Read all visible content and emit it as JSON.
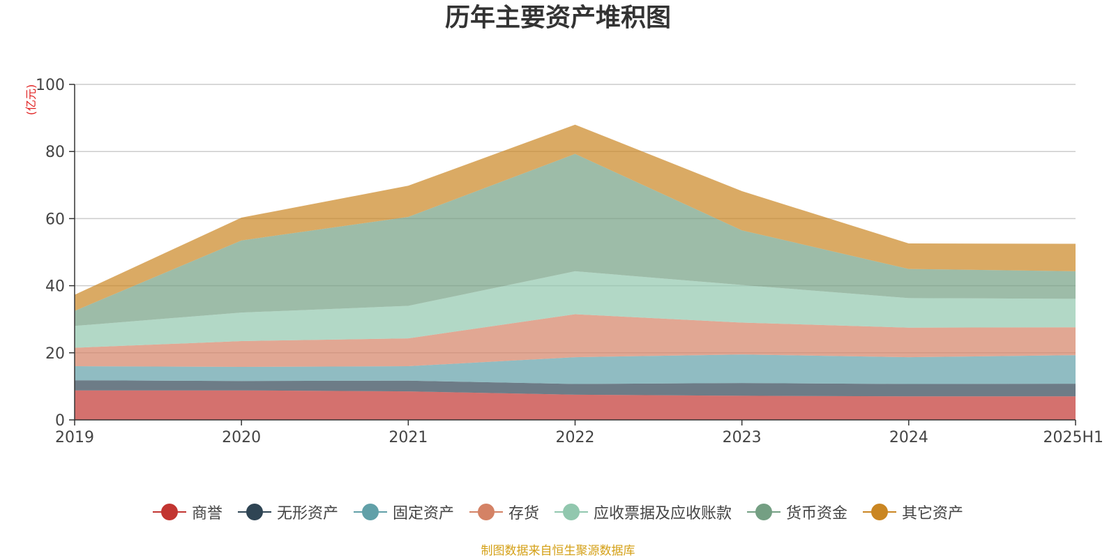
{
  "chart_data": {
    "type": "area",
    "stacked": true,
    "title": "历年主要资产堆积图",
    "unit_label": "(亿元)",
    "categories": [
      "2019",
      "2020",
      "2021",
      "2022",
      "2023",
      "2024",
      "2025H1"
    ],
    "ylim": [
      0,
      100
    ],
    "yticks": [
      0,
      20,
      40,
      60,
      80,
      100
    ],
    "grid": true,
    "legend_position": "bottom",
    "series": [
      {
        "name": "商誉",
        "color": "#c23531",
        "values": [
          8.8,
          8.8,
          8.5,
          7.5,
          7.2,
          7.0,
          7.0
        ]
      },
      {
        "name": "无形资产",
        "color": "#2f4554",
        "values": [
          3.0,
          2.8,
          3.2,
          3.2,
          3.8,
          3.7,
          3.8
        ]
      },
      {
        "name": "固定资产",
        "color": "#61a0a8",
        "values": [
          4.2,
          4.2,
          4.3,
          8.0,
          8.5,
          8.0,
          8.5
        ]
      },
      {
        "name": "存货",
        "color": "#d48265",
        "values": [
          5.5,
          7.7,
          8.3,
          12.8,
          9.5,
          8.8,
          8.3
        ]
      },
      {
        "name": "应收票据及应收账款",
        "color": "#91c7ae",
        "values": [
          6.5,
          8.5,
          9.7,
          12.8,
          11.2,
          8.8,
          8.5
        ]
      },
      {
        "name": "货币资金",
        "color": "#749f83",
        "values": [
          4.5,
          21.5,
          26.5,
          35.0,
          16.3,
          8.7,
          8.2
        ]
      },
      {
        "name": "其它资产",
        "color": "#ca8622",
        "values": [
          4.8,
          6.8,
          9.3,
          8.7,
          11.7,
          7.6,
          8.2
        ]
      }
    ]
  },
  "footer": {
    "source_note": "制图数据来自恒生聚源数据库"
  }
}
